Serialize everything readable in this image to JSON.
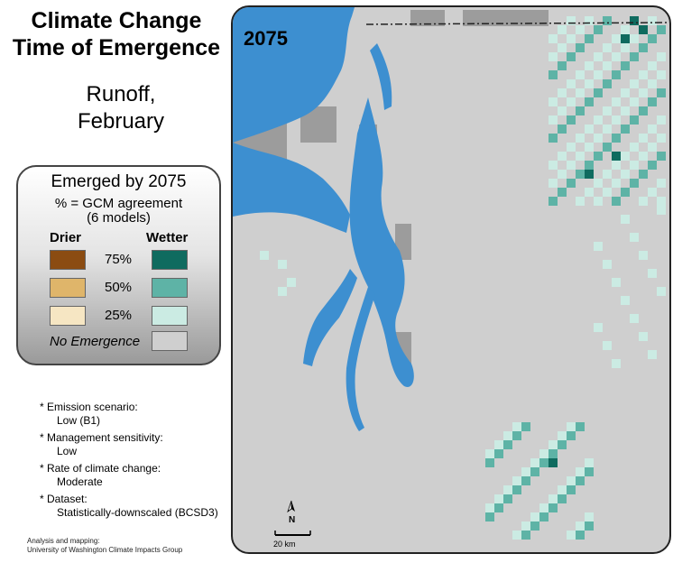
{
  "title_line1": "Climate Change",
  "title_line2": "Time of Emergence",
  "subtitle_line1": "Runoff,",
  "subtitle_line2": "February",
  "legend": {
    "title": "Emerged by 2075",
    "sub1": "% = GCM agreement",
    "sub2": "(6 models)",
    "drier": "Drier",
    "wetter": "Wetter",
    "levels": [
      "75%",
      "50%",
      "25%"
    ],
    "no_emergence": "No Emergence",
    "colors": {
      "drier": [
        "#8b4c12",
        "#dfb56a",
        "#f6e6c3"
      ],
      "wetter": [
        "#0f6b5f",
        "#5eb3a6",
        "#cbebe3"
      ],
      "no_emergence": "#cfcfcf"
    }
  },
  "map": {
    "year": "2075",
    "north": "N",
    "scale": "20 km",
    "colors": {
      "water": "#3d8fd0",
      "land": "#cfcfcf",
      "outside": "#9c9c9c"
    }
  },
  "notes": [
    {
      "label": "* Emission scenario:",
      "value": "Low (B1)"
    },
    {
      "label": "* Management sensitivity:",
      "value": "Low"
    },
    {
      "label": "* Rate of climate change:",
      "value": "Moderate"
    },
    {
      "label": "* Dataset:",
      "value": "Statistically-downscaled (BCSD3)"
    }
  ],
  "credit1": "Analysis and mapping:",
  "credit2": "University of Washington Climate Impacts Group"
}
